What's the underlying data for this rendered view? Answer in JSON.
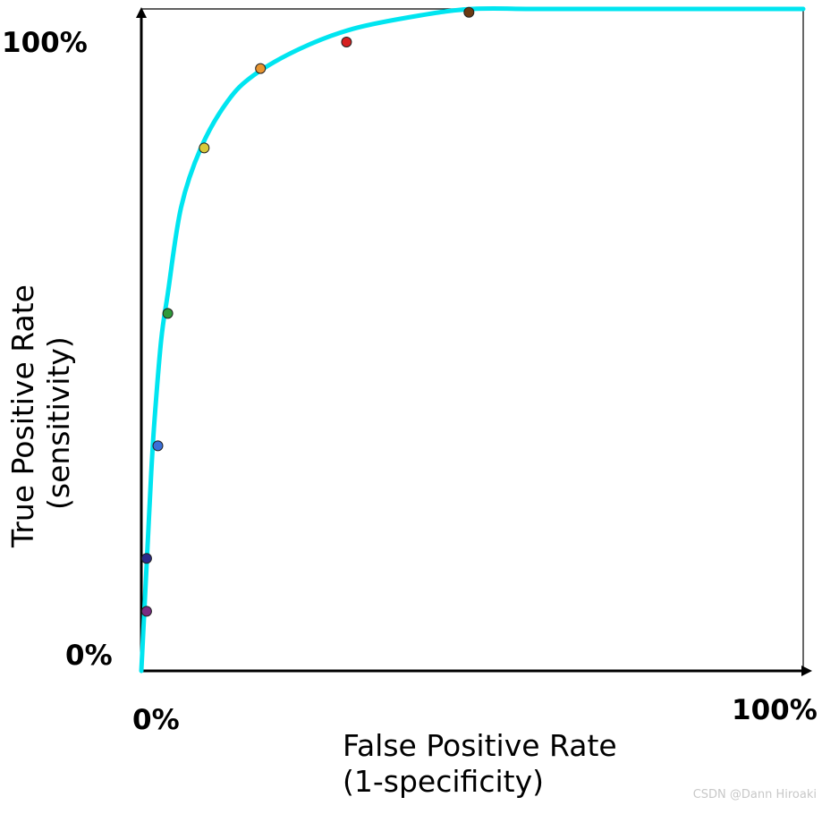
{
  "chart_data": {
    "type": "line",
    "title": "",
    "xlabel": "False Positive Rate\n(1-specificity)",
    "xlabel_lines": [
      "False Positive Rate",
      "(1-specificity)"
    ],
    "ylabel_lines": [
      "True Positive Rate",
      "(sensitivity)"
    ],
    "x_ticks": [
      "0%",
      "100%"
    ],
    "y_ticks": [
      "0%",
      "100%"
    ],
    "xlim": [
      0,
      100
    ],
    "ylim": [
      0,
      100
    ],
    "grid": false,
    "series": [
      {
        "type": "line",
        "color": "#00e5f0",
        "x": [
          0,
          0.5,
          1,
          1.5,
          2,
          3,
          4,
          6,
          9,
          13,
          17,
          24,
          32,
          42,
          50,
          60,
          75,
          100
        ],
        "y": [
          0,
          10,
          20,
          30,
          38,
          50,
          57,
          70,
          79,
          86,
          90,
          94,
          97,
          99,
          100,
          100,
          100,
          100
        ]
      },
      {
        "type": "scatter",
        "points": [
          {
            "x": 0.8,
            "y": 9,
            "color": "#7a2a82"
          },
          {
            "x": 0.8,
            "y": 17,
            "color": "#2a2a8a"
          },
          {
            "x": 2.5,
            "y": 34,
            "color": "#3b6fd8"
          },
          {
            "x": 4,
            "y": 54,
            "color": "#2e9a3a"
          },
          {
            "x": 9.5,
            "y": 79,
            "color": "#d8c93a"
          },
          {
            "x": 18,
            "y": 91,
            "color": "#e89530"
          },
          {
            "x": 31,
            "y": 95,
            "color": "#d62020"
          },
          {
            "x": 49.5,
            "y": 99.5,
            "color": "#6b3a12"
          }
        ]
      }
    ]
  },
  "watermark": "CSDN @Dann Hiroaki"
}
